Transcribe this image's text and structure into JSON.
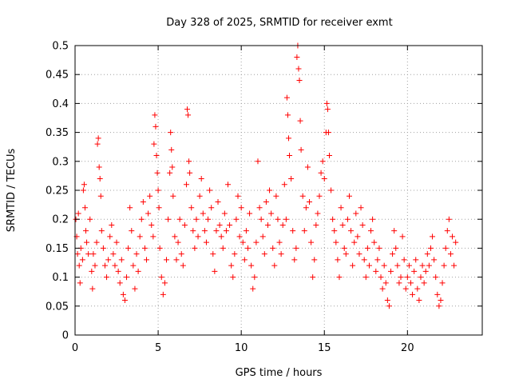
{
  "chart_data": {
    "type": "scatter",
    "title": "Day 328 of 2025, SRMTID for receiver exmt",
    "xlabel": "GPS time / hours",
    "ylabel": "SRMTID / TECUs",
    "xlim": [
      0,
      24.5
    ],
    "ylim": [
      0,
      0.5
    ],
    "xticks": [
      0,
      5,
      10,
      15,
      20
    ],
    "xtick_labels": [
      "0",
      "5",
      "10",
      "15",
      "20"
    ],
    "yticks": [
      0,
      0.05,
      0.1,
      0.15,
      0.2,
      0.25,
      0.3,
      0.35,
      0.4,
      0.45,
      0.5
    ],
    "ytick_labels": [
      "0",
      "0.05",
      "0.1",
      "0.15",
      "0.2",
      "0.25",
      "0.3",
      "0.35",
      "0.4",
      "0.45",
      "0.5"
    ],
    "grid": true,
    "marker": "+",
    "marker_color": "#ff0000",
    "series": [
      {
        "name": "SRMTID",
        "points": [
          [
            0.05,
            0.2
          ],
          [
            0.1,
            0.17
          ],
          [
            0.15,
            0.14
          ],
          [
            0.2,
            0.21
          ],
          [
            0.25,
            0.12
          ],
          [
            0.3,
            0.09
          ],
          [
            0.35,
            0.15
          ],
          [
            0.45,
            0.13
          ],
          [
            0.5,
            0.25
          ],
          [
            0.55,
            0.26
          ],
          [
            0.6,
            0.22
          ],
          [
            0.65,
            0.18
          ],
          [
            0.7,
            0.16
          ],
          [
            0.8,
            0.14
          ],
          [
            0.9,
            0.2
          ],
          [
            1.0,
            0.11
          ],
          [
            1.05,
            0.08
          ],
          [
            1.1,
            0.14
          ],
          [
            1.2,
            0.12
          ],
          [
            1.3,
            0.16
          ],
          [
            1.35,
            0.33
          ],
          [
            1.4,
            0.34
          ],
          [
            1.45,
            0.29
          ],
          [
            1.5,
            0.27
          ],
          [
            1.55,
            0.24
          ],
          [
            1.6,
            0.18
          ],
          [
            1.7,
            0.15
          ],
          [
            1.8,
            0.12
          ],
          [
            1.9,
            0.1
          ],
          [
            2.0,
            0.13
          ],
          [
            2.1,
            0.17
          ],
          [
            2.2,
            0.19
          ],
          [
            2.3,
            0.14
          ],
          [
            2.4,
            0.12
          ],
          [
            2.5,
            0.16
          ],
          [
            2.6,
            0.11
          ],
          [
            2.7,
            0.09
          ],
          [
            2.8,
            0.13
          ],
          [
            2.9,
            0.07
          ],
          [
            3.0,
            0.06
          ],
          [
            3.1,
            0.1
          ],
          [
            3.2,
            0.15
          ],
          [
            3.3,
            0.22
          ],
          [
            3.4,
            0.18
          ],
          [
            3.5,
            0.12
          ],
          [
            3.6,
            0.08
          ],
          [
            3.7,
            0.14
          ],
          [
            3.8,
            0.11
          ],
          [
            3.9,
            0.17
          ],
          [
            4.0,
            0.2
          ],
          [
            4.1,
            0.23
          ],
          [
            4.2,
            0.15
          ],
          [
            4.3,
            0.13
          ],
          [
            4.4,
            0.21
          ],
          [
            4.5,
            0.24
          ],
          [
            4.6,
            0.19
          ],
          [
            4.7,
            0.17
          ],
          [
            4.75,
            0.33
          ],
          [
            4.8,
            0.38
          ],
          [
            4.85,
            0.36
          ],
          [
            4.9,
            0.31
          ],
          [
            4.95,
            0.28
          ],
          [
            5.0,
            0.25
          ],
          [
            5.05,
            0.22
          ],
          [
            5.1,
            0.15
          ],
          [
            5.2,
            0.1
          ],
          [
            5.3,
            0.07
          ],
          [
            5.4,
            0.09
          ],
          [
            5.5,
            0.13
          ],
          [
            5.6,
            0.2
          ],
          [
            5.7,
            0.28
          ],
          [
            5.75,
            0.35
          ],
          [
            5.8,
            0.32
          ],
          [
            5.85,
            0.29
          ],
          [
            5.9,
            0.24
          ],
          [
            6.0,
            0.17
          ],
          [
            6.1,
            0.13
          ],
          [
            6.2,
            0.16
          ],
          [
            6.3,
            0.2
          ],
          [
            6.4,
            0.14
          ],
          [
            6.5,
            0.12
          ],
          [
            6.6,
            0.19
          ],
          [
            6.7,
            0.26
          ],
          [
            6.75,
            0.39
          ],
          [
            6.8,
            0.38
          ],
          [
            6.85,
            0.3
          ],
          [
            6.9,
            0.28
          ],
          [
            7.0,
            0.22
          ],
          [
            7.1,
            0.18
          ],
          [
            7.2,
            0.15
          ],
          [
            7.3,
            0.2
          ],
          [
            7.4,
            0.17
          ],
          [
            7.5,
            0.24
          ],
          [
            7.6,
            0.27
          ],
          [
            7.7,
            0.21
          ],
          [
            7.8,
            0.18
          ],
          [
            7.9,
            0.16
          ],
          [
            8.0,
            0.2
          ],
          [
            8.1,
            0.25
          ],
          [
            8.2,
            0.22
          ],
          [
            8.3,
            0.14
          ],
          [
            8.4,
            0.11
          ],
          [
            8.5,
            0.18
          ],
          [
            8.6,
            0.23
          ],
          [
            8.7,
            0.19
          ],
          [
            8.8,
            0.17
          ],
          [
            8.9,
            0.15
          ],
          [
            9.0,
            0.21
          ],
          [
            9.1,
            0.18
          ],
          [
            9.2,
            0.26
          ],
          [
            9.3,
            0.19
          ],
          [
            9.4,
            0.12
          ],
          [
            9.5,
            0.1
          ],
          [
            9.6,
            0.14
          ],
          [
            9.7,
            0.2
          ],
          [
            9.8,
            0.24
          ],
          [
            9.9,
            0.17
          ],
          [
            10.0,
            0.22
          ],
          [
            10.1,
            0.16
          ],
          [
            10.2,
            0.13
          ],
          [
            10.3,
            0.18
          ],
          [
            10.4,
            0.15
          ],
          [
            10.5,
            0.21
          ],
          [
            10.6,
            0.12
          ],
          [
            10.7,
            0.08
          ],
          [
            10.8,
            0.1
          ],
          [
            10.9,
            0.16
          ],
          [
            11.0,
            0.3
          ],
          [
            11.1,
            0.22
          ],
          [
            11.2,
            0.2
          ],
          [
            11.3,
            0.17
          ],
          [
            11.4,
            0.14
          ],
          [
            11.5,
            0.23
          ],
          [
            11.6,
            0.19
          ],
          [
            11.7,
            0.25
          ],
          [
            11.8,
            0.21
          ],
          [
            11.9,
            0.15
          ],
          [
            12.0,
            0.12
          ],
          [
            12.1,
            0.24
          ],
          [
            12.2,
            0.2
          ],
          [
            12.3,
            0.16
          ],
          [
            12.4,
            0.14
          ],
          [
            12.5,
            0.19
          ],
          [
            12.6,
            0.26
          ],
          [
            12.7,
            0.2
          ],
          [
            12.75,
            0.41
          ],
          [
            12.8,
            0.38
          ],
          [
            12.85,
            0.34
          ],
          [
            12.9,
            0.31
          ],
          [
            13.0,
            0.27
          ],
          [
            13.1,
            0.18
          ],
          [
            13.2,
            0.13
          ],
          [
            13.3,
            0.15
          ],
          [
            13.35,
            0.48
          ],
          [
            13.4,
            0.5
          ],
          [
            13.45,
            0.46
          ],
          [
            13.5,
            0.44
          ],
          [
            13.55,
            0.37
          ],
          [
            13.6,
            0.32
          ],
          [
            13.7,
            0.24
          ],
          [
            13.8,
            0.18
          ],
          [
            13.9,
            0.22
          ],
          [
            14.0,
            0.29
          ],
          [
            14.1,
            0.23
          ],
          [
            14.2,
            0.16
          ],
          [
            14.3,
            0.1
          ],
          [
            14.4,
            0.13
          ],
          [
            14.5,
            0.19
          ],
          [
            14.6,
            0.21
          ],
          [
            14.7,
            0.24
          ],
          [
            14.8,
            0.28
          ],
          [
            14.9,
            0.3
          ],
          [
            15.0,
            0.27
          ],
          [
            15.1,
            0.35
          ],
          [
            15.15,
            0.4
          ],
          [
            15.2,
            0.39
          ],
          [
            15.25,
            0.35
          ],
          [
            15.3,
            0.31
          ],
          [
            15.4,
            0.25
          ],
          [
            15.5,
            0.2
          ],
          [
            15.6,
            0.18
          ],
          [
            15.7,
            0.16
          ],
          [
            15.8,
            0.13
          ],
          [
            15.9,
            0.1
          ],
          [
            16.0,
            0.22
          ],
          [
            16.1,
            0.19
          ],
          [
            16.2,
            0.15
          ],
          [
            16.3,
            0.14
          ],
          [
            16.4,
            0.2
          ],
          [
            16.5,
            0.24
          ],
          [
            16.6,
            0.18
          ],
          [
            16.7,
            0.12
          ],
          [
            16.8,
            0.16
          ],
          [
            16.9,
            0.21
          ],
          [
            17.0,
            0.17
          ],
          [
            17.1,
            0.14
          ],
          [
            17.2,
            0.22
          ],
          [
            17.3,
            0.19
          ],
          [
            17.4,
            0.13
          ],
          [
            17.5,
            0.1
          ],
          [
            17.6,
            0.15
          ],
          [
            17.7,
            0.12
          ],
          [
            17.8,
            0.18
          ],
          [
            17.9,
            0.2
          ],
          [
            18.0,
            0.16
          ],
          [
            18.1,
            0.11
          ],
          [
            18.2,
            0.13
          ],
          [
            18.3,
            0.15
          ],
          [
            18.4,
            0.1
          ],
          [
            18.5,
            0.08
          ],
          [
            18.6,
            0.12
          ],
          [
            18.7,
            0.09
          ],
          [
            18.8,
            0.06
          ],
          [
            18.9,
            0.05
          ],
          [
            19.0,
            0.11
          ],
          [
            19.1,
            0.14
          ],
          [
            19.2,
            0.18
          ],
          [
            19.3,
            0.15
          ],
          [
            19.4,
            0.12
          ],
          [
            19.5,
            0.09
          ],
          [
            19.6,
            0.1
          ],
          [
            19.7,
            0.17
          ],
          [
            19.8,
            0.13
          ],
          [
            19.9,
            0.08
          ],
          [
            20.0,
            0.1
          ],
          [
            20.1,
            0.12
          ],
          [
            20.2,
            0.09
          ],
          [
            20.3,
            0.07
          ],
          [
            20.4,
            0.11
          ],
          [
            20.5,
            0.13
          ],
          [
            20.6,
            0.08
          ],
          [
            20.7,
            0.06
          ],
          [
            20.8,
            0.1
          ],
          [
            20.9,
            0.12
          ],
          [
            21.0,
            0.09
          ],
          [
            21.1,
            0.11
          ],
          [
            21.2,
            0.14
          ],
          [
            21.3,
            0.12
          ],
          [
            21.4,
            0.15
          ],
          [
            21.5,
            0.17
          ],
          [
            21.6,
            0.13
          ],
          [
            21.7,
            0.1
          ],
          [
            21.8,
            0.07
          ],
          [
            21.9,
            0.05
          ],
          [
            22.0,
            0.06
          ],
          [
            22.1,
            0.09
          ],
          [
            22.2,
            0.12
          ],
          [
            22.3,
            0.15
          ],
          [
            22.4,
            0.18
          ],
          [
            22.5,
            0.2
          ],
          [
            22.6,
            0.14
          ],
          [
            22.7,
            0.17
          ],
          [
            22.8,
            0.12
          ],
          [
            22.9,
            0.16
          ]
        ]
      }
    ]
  }
}
